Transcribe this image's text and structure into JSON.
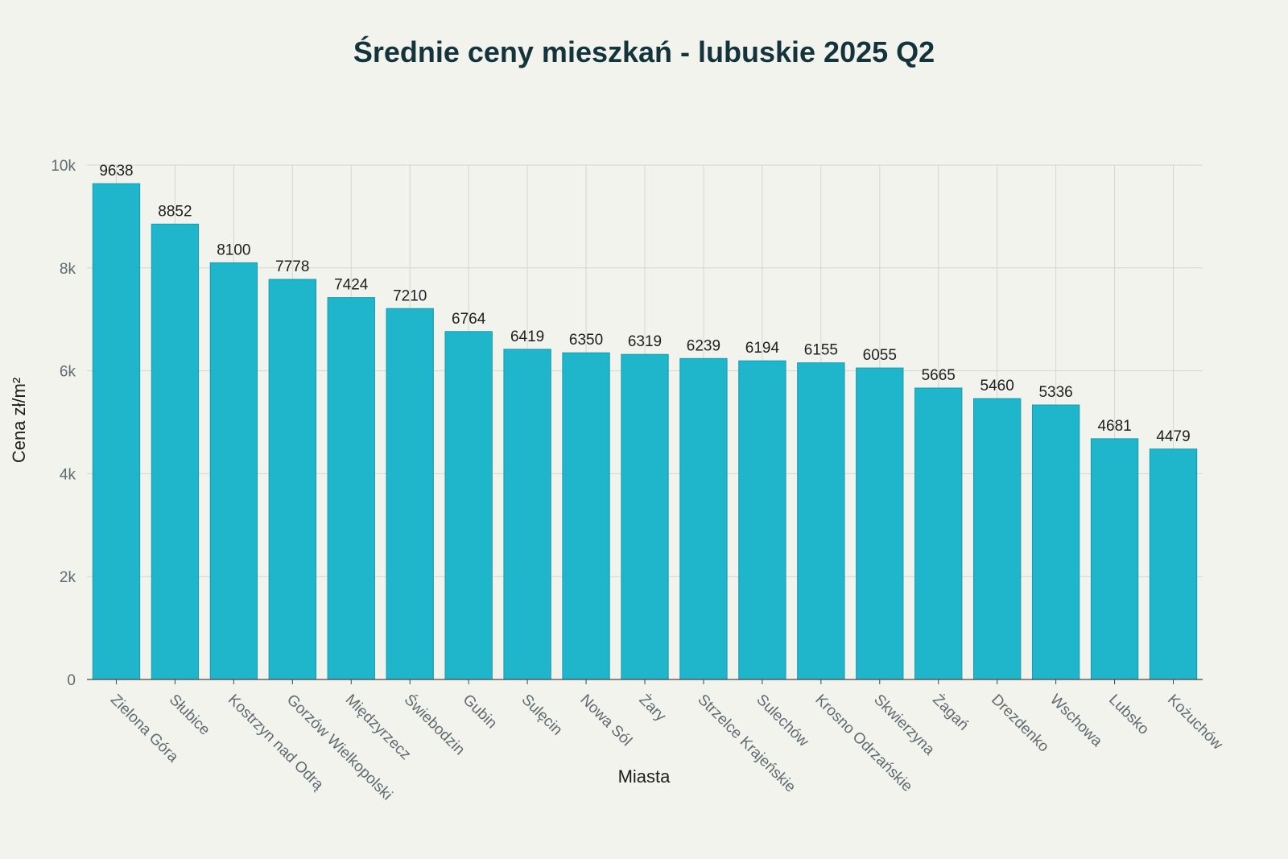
{
  "chart_data": {
    "type": "bar",
    "title": "Średnie ceny mieszkań - lubuskie 2025 Q2",
    "xlabel": "Miasta",
    "ylabel": "Cena zł/m²",
    "ylim": [
      0,
      10000
    ],
    "yticks": [
      0,
      2000,
      4000,
      6000,
      8000,
      10000
    ],
    "ytick_labels": [
      "0",
      "2k",
      "4k",
      "6k",
      "8k",
      "10k"
    ],
    "grid": true,
    "bar_color": "#1fb5cb",
    "categories": [
      "Zielona Góra",
      "Słubice",
      "Kostrzyn nad Odrą",
      "Gorzów Wielkopolski",
      "Międzyrzecz",
      "Świebodzin",
      "Gubin",
      "Sulęcin",
      "Nowa Sól",
      "Żary",
      "Strzelce Krajeńskie",
      "Sulechów",
      "Krosno Odrzańskie",
      "Skwierzyna",
      "Żagań",
      "Drezdenko",
      "Wschowa",
      "Lubsko",
      "Kożuchów"
    ],
    "values": [
      9638,
      8852,
      8100,
      7778,
      7424,
      7210,
      6764,
      6419,
      6350,
      6319,
      6239,
      6194,
      6155,
      6055,
      5665,
      5460,
      5336,
      4681,
      4479
    ]
  }
}
